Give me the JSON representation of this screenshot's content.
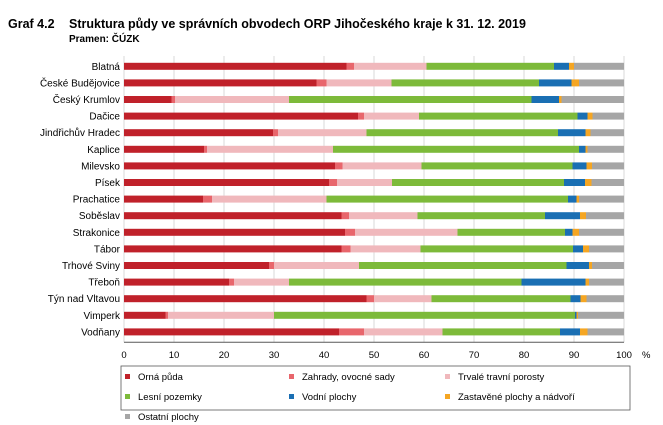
{
  "header": {
    "figure_number": "Graf 4.2",
    "title": "Struktura půdy ve správních obvodech ORP Jihočeského kraje k 31. 12. 2019",
    "source": "Pramen: ČÚZK"
  },
  "chart_data": {
    "type": "bar",
    "orientation": "horizontal",
    "stacked": true,
    "title": "Struktura půdy ve správních obvodech ORP Jihočeského kraje k 31. 12. 2019",
    "xlabel": "%",
    "ylabel": "",
    "xlim": [
      0,
      100
    ],
    "x_ticks": [
      "0",
      "10",
      "20",
      "30",
      "40",
      "50",
      "60",
      "70",
      "80",
      "90",
      "100"
    ],
    "grid": true,
    "legend_position": "bottom",
    "categories": [
      "Blatná",
      "České Budějovice",
      "Český Krumlov",
      "Dačice",
      "Jindřichův Hradec",
      "Kaplice",
      "Milevsko",
      "Písek",
      "Prachatice",
      "Soběslav",
      "Strakonice",
      "Tábor",
      "Trhové Sviny",
      "Třeboň",
      "Týn nad Vltavou",
      "Vimperk",
      "Vodňany"
    ],
    "series": [
      {
        "name": "Orná půda",
        "color": "#c0212a",
        "values": [
          44.5,
          38.5,
          9.5,
          46.8,
          29.8,
          16.0,
          42.2,
          41.0,
          15.8,
          43.5,
          44.2,
          43.5,
          29.0,
          21.0,
          48.5,
          8.3,
          43.0
        ]
      },
      {
        "name": "Zahrady, ovocné sady",
        "color": "#e8666c",
        "values": [
          1.5,
          2.0,
          0.7,
          1.2,
          1.0,
          0.6,
          1.5,
          1.6,
          1.8,
          1.5,
          2.0,
          1.8,
          1.0,
          1.0,
          1.5,
          0.5,
          5.0
        ]
      },
      {
        "name": "Trvalé travní porosty",
        "color": "#f0b8bc",
        "values": [
          14.5,
          13.0,
          22.8,
          11.0,
          17.7,
          25.2,
          15.8,
          11.0,
          22.9,
          13.7,
          20.5,
          14.0,
          17.0,
          11.0,
          11.5,
          21.2,
          15.7
        ]
      },
      {
        "name": "Lesní pozemky",
        "color": "#7dba3a",
        "values": [
          25.5,
          29.5,
          48.5,
          31.7,
          38.3,
          49.2,
          30.2,
          34.4,
          48.3,
          25.5,
          21.5,
          30.5,
          41.5,
          46.5,
          27.8,
          60.2,
          23.5
        ]
      },
      {
        "name": "Vodní plochy",
        "color": "#1a6fb3",
        "values": [
          3.0,
          6.5,
          5.5,
          2.0,
          5.5,
          1.3,
          2.8,
          4.2,
          1.7,
          7.0,
          1.5,
          2.0,
          4.5,
          12.8,
          2.0,
          0.3,
          4.0
        ]
      },
      {
        "name": "Zastavěné plochy a nádvoří",
        "color": "#f5a623",
        "values": [
          1.0,
          1.5,
          0.5,
          1.0,
          1.0,
          0.4,
          1.1,
          1.3,
          0.5,
          1.2,
          1.3,
          1.2,
          0.6,
          0.7,
          1.2,
          0.3,
          1.5
        ]
      },
      {
        "name": "Ostatní plochy",
        "color": "#a6a6a6",
        "values": [
          10.0,
          9.0,
          12.5,
          6.3,
          6.7,
          7.3,
          6.4,
          6.5,
          9.0,
          7.6,
          9.0,
          7.0,
          6.4,
          7.0,
          7.5,
          9.2,
          7.3
        ]
      }
    ]
  }
}
